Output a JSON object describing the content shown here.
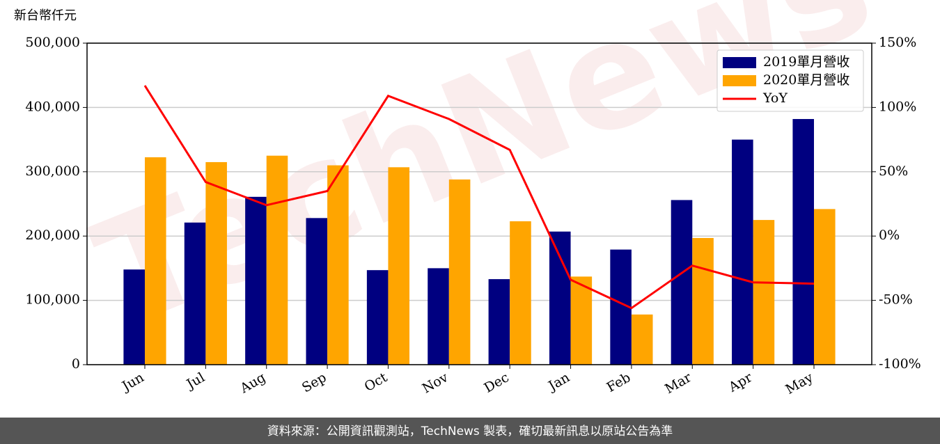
{
  "chart_data": {
    "type": "bar-line",
    "y_label": "新台幣仟元",
    "watermark": "TechNews",
    "source": "資料來源：公開資訊觀測站，TechNews 製表，確切最新訊息以原站公告為準",
    "categories": [
      "Jun",
      "Jul",
      "Aug",
      "Sep",
      "Oct",
      "Nov",
      "Dec",
      "Jan",
      "Feb",
      "Mar",
      "Apr",
      "May"
    ],
    "series": [
      {
        "name": "2019單月營收",
        "color": "#000080",
        "kind": "bar",
        "values": [
          148000,
          221000,
          261000,
          228000,
          147000,
          150000,
          133000,
          207000,
          179000,
          256000,
          350000,
          382000
        ]
      },
      {
        "name": "2020單月營收",
        "color": "#ffa500",
        "kind": "bar",
        "values": [
          322500,
          315000,
          325000,
          310000,
          307000,
          288000,
          223000,
          137000,
          78000,
          197000,
          225000,
          242000
        ]
      },
      {
        "name": "YoY",
        "color": "#ff0000",
        "kind": "line",
        "axis": "y2",
        "values": [
          117,
          42,
          24,
          35,
          109,
          91,
          67,
          -34,
          -56,
          -23,
          -36,
          -37
        ]
      }
    ],
    "ylim": [
      0,
      500000
    ],
    "yticks": [
      0,
      {
        "value": 100000,
        "label": "100,000"
      },
      {
        "value": 200000,
        "label": "200,000"
      },
      {
        "value": 300000,
        "label": "300,000"
      },
      {
        "value": 400000,
        "label": "400,000"
      },
      {
        "value": 500000,
        "label": "500,000"
      }
    ],
    "y2lim": [
      -100,
      150
    ],
    "y2ticks": [
      {
        "value": -100,
        "label": "-100%"
      },
      {
        "value": -50,
        "label": "-50%"
      },
      {
        "value": 0,
        "label": "0%"
      },
      {
        "value": 50,
        "label": "50%"
      },
      {
        "value": 100,
        "label": "100%"
      },
      {
        "value": 150,
        "label": "150%"
      }
    ],
    "grid": true,
    "legend": "upper right"
  }
}
